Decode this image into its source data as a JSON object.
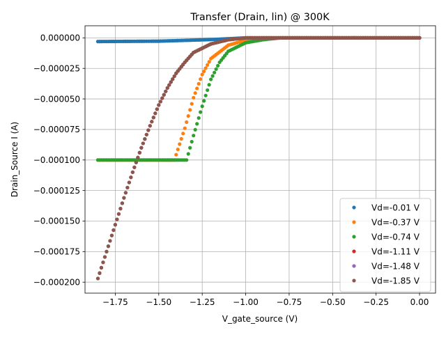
{
  "chart_data": {
    "type": "scatter",
    "title": "Transfer (Drain, lin) @ 300K",
    "xlabel": "V_gate_source (V)",
    "ylabel": "Drain_Source I (A)",
    "xlim": [
      -1.924,
      0.092
    ],
    "ylim": [
      -0.000209,
      9.9e-06
    ],
    "xticks": [
      -1.75,
      -1.5,
      -1.25,
      -1.0,
      -0.75,
      -0.5,
      -0.25,
      0.0
    ],
    "xtick_labels": [
      "−1.75",
      "−1.50",
      "−1.25",
      "−1.00",
      "−0.75",
      "−0.50",
      "−0.25",
      "0.00"
    ],
    "yticks": [
      0.0,
      -2.5e-05,
      -5e-05,
      -7.5e-05,
      -0.0001,
      -0.000125,
      -0.00015,
      -0.000175,
      -0.0002
    ],
    "ytick_labels": [
      "0.000000",
      "−0.000025",
      "−0.000050",
      "−0.000075",
      "−0.000100",
      "−0.000125",
      "−0.000150",
      "−0.000175",
      "−0.000200"
    ],
    "grid": true,
    "legend_position": "lower-right",
    "x_range": {
      "start": -1.85,
      "end": 0.0,
      "step": 0.01
    },
    "series": [
      {
        "name": "Vd=-0.01 V",
        "color": "#1f77b4",
        "model": "linear_small",
        "points": [
          [
            -1.85,
            -3e-06
          ],
          [
            -1.5,
            -2.7e-06
          ],
          [
            -1.2,
            -1.4e-06
          ],
          [
            -1.0,
            0.0
          ],
          [
            0.0,
            0.0
          ]
        ]
      },
      {
        "name": "Vd=-0.37 V",
        "color": "#ff7f0e",
        "model": "saturated_then_rising",
        "points": [
          [
            -1.85,
            -0.0001
          ],
          [
            -1.41,
            -0.0001
          ],
          [
            -1.35,
            -7.4e-05
          ],
          [
            -1.3,
            -4.9e-05
          ],
          [
            -1.25,
            -3e-05
          ],
          [
            -1.2,
            -1.7e-05
          ],
          [
            -1.1,
            -6e-06
          ],
          [
            -1.0,
            -2e-06
          ],
          [
            -0.9,
            0.0
          ],
          [
            0.0,
            0.0
          ]
        ]
      },
      {
        "name": "Vd=-0.74 V",
        "color": "#2ca02c",
        "model": "saturated_then_rising",
        "points": [
          [
            -1.85,
            -0.0001
          ],
          [
            -1.34,
            -0.0001
          ],
          [
            -1.3,
            -8e-05
          ],
          [
            -1.25,
            -5.6e-05
          ],
          [
            -1.2,
            -3.4e-05
          ],
          [
            -1.15,
            -2e-05
          ],
          [
            -1.1,
            -1.1e-05
          ],
          [
            -1.0,
            -4e-06
          ],
          [
            -0.9,
            -1.5e-06
          ],
          [
            -0.8,
            0.0
          ],
          [
            0.0,
            0.0
          ]
        ]
      },
      {
        "name": "Vd=-1.11 V",
        "color": "#d62728",
        "model": "rising",
        "points": [
          [
            -1.85,
            -0.000197
          ],
          [
            -1.8,
            -0.000175
          ],
          [
            -1.75,
            -0.000153
          ],
          [
            -1.7,
            -0.000131
          ],
          [
            -1.65,
            -0.00011
          ],
          [
            -1.6,
            -9e-05
          ],
          [
            -1.55,
            -7.2e-05
          ],
          [
            -1.5,
            -5.5e-05
          ],
          [
            -1.45,
            -4.1e-05
          ],
          [
            -1.4,
            -2.9e-05
          ],
          [
            -1.35,
            -2e-05
          ],
          [
            -1.3,
            -1.2e-05
          ],
          [
            -1.2,
            -5e-06
          ],
          [
            -1.1,
            -1.5e-06
          ],
          [
            -1.0,
            0.0
          ],
          [
            0.0,
            0.0
          ]
        ]
      },
      {
        "name": "Vd=-1.48 V",
        "color": "#9467bd",
        "model": "rising",
        "points": [
          [
            -1.85,
            -0.000197
          ],
          [
            -1.8,
            -0.000175
          ],
          [
            -1.75,
            -0.000153
          ],
          [
            -1.7,
            -0.000131
          ],
          [
            -1.65,
            -0.00011
          ],
          [
            -1.6,
            -9e-05
          ],
          [
            -1.55,
            -7.2e-05
          ],
          [
            -1.5,
            -5.5e-05
          ],
          [
            -1.45,
            -4.1e-05
          ],
          [
            -1.4,
            -2.9e-05
          ],
          [
            -1.35,
            -2e-05
          ],
          [
            -1.3,
            -1.2e-05
          ],
          [
            -1.2,
            -5e-06
          ],
          [
            -1.1,
            -1.5e-06
          ],
          [
            -1.0,
            0.0
          ],
          [
            0.0,
            0.0
          ]
        ]
      },
      {
        "name": "Vd=-1.85 V",
        "color": "#8c564b",
        "model": "rising",
        "points": [
          [
            -1.85,
            -0.000197
          ],
          [
            -1.8,
            -0.000175
          ],
          [
            -1.75,
            -0.000153
          ],
          [
            -1.7,
            -0.000131
          ],
          [
            -1.65,
            -0.00011
          ],
          [
            -1.6,
            -9e-05
          ],
          [
            -1.55,
            -7.2e-05
          ],
          [
            -1.5,
            -5.5e-05
          ],
          [
            -1.45,
            -4.1e-05
          ],
          [
            -1.4,
            -2.9e-05
          ],
          [
            -1.35,
            -2e-05
          ],
          [
            -1.3,
            -1.2e-05
          ],
          [
            -1.2,
            -5e-06
          ],
          [
            -1.1,
            -1.5e-06
          ],
          [
            -1.0,
            0.0
          ],
          [
            0.0,
            0.0
          ]
        ]
      }
    ]
  }
}
